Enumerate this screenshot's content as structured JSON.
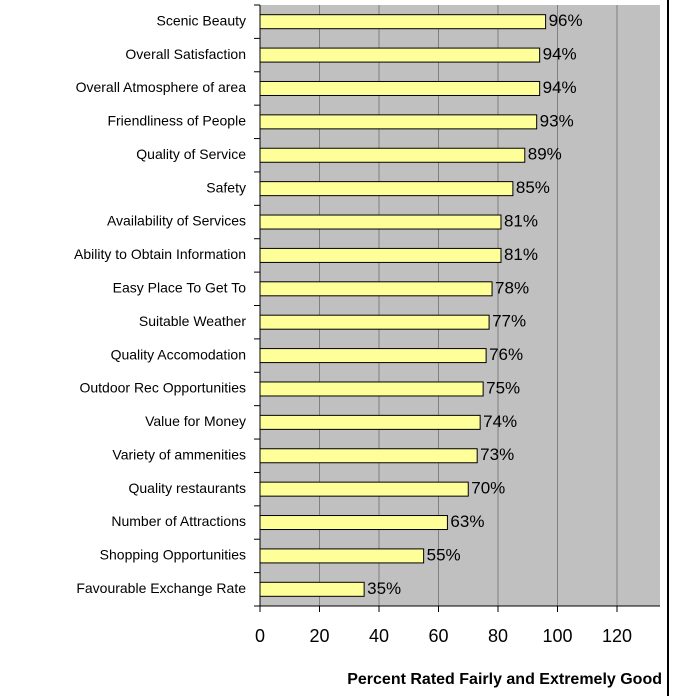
{
  "chart_data": {
    "type": "bar",
    "orientation": "horizontal",
    "x_label": "Percent Rated Fairly and Extremely Good",
    "categories": [
      "Scenic Beauty",
      "Overall Satisfaction",
      "Overall Atmosphere of area",
      "Friendliness of People",
      "Quality of Service",
      "Safety",
      "Availability of Services",
      "Ability to Obtain Information",
      "Easy Place To Get To",
      "Suitable Weather",
      "Quality Accomodation",
      "Outdoor Rec Opportunities",
      "Value for Money",
      "Variety of ammenities",
      "Quality restaurants",
      "Number of Attractions",
      "Shopping Opportunities",
      "Favourable Exchange Rate"
    ],
    "values": [
      96,
      94,
      94,
      93,
      89,
      85,
      81,
      81,
      78,
      77,
      76,
      75,
      74,
      73,
      70,
      63,
      55,
      35
    ],
    "value_labels": [
      "96%",
      "94%",
      "94%",
      "93%",
      "89%",
      "85%",
      "81%",
      "81%",
      "78%",
      "77%",
      "76%",
      "75%",
      "74%",
      "73%",
      "70%",
      "63%",
      "55%",
      "35%"
    ],
    "color": "#ffff99",
    "xlim": [
      0,
      120
    ],
    "xticks": [
      0,
      20,
      40,
      60,
      80,
      100,
      120
    ],
    "grid": true
  }
}
